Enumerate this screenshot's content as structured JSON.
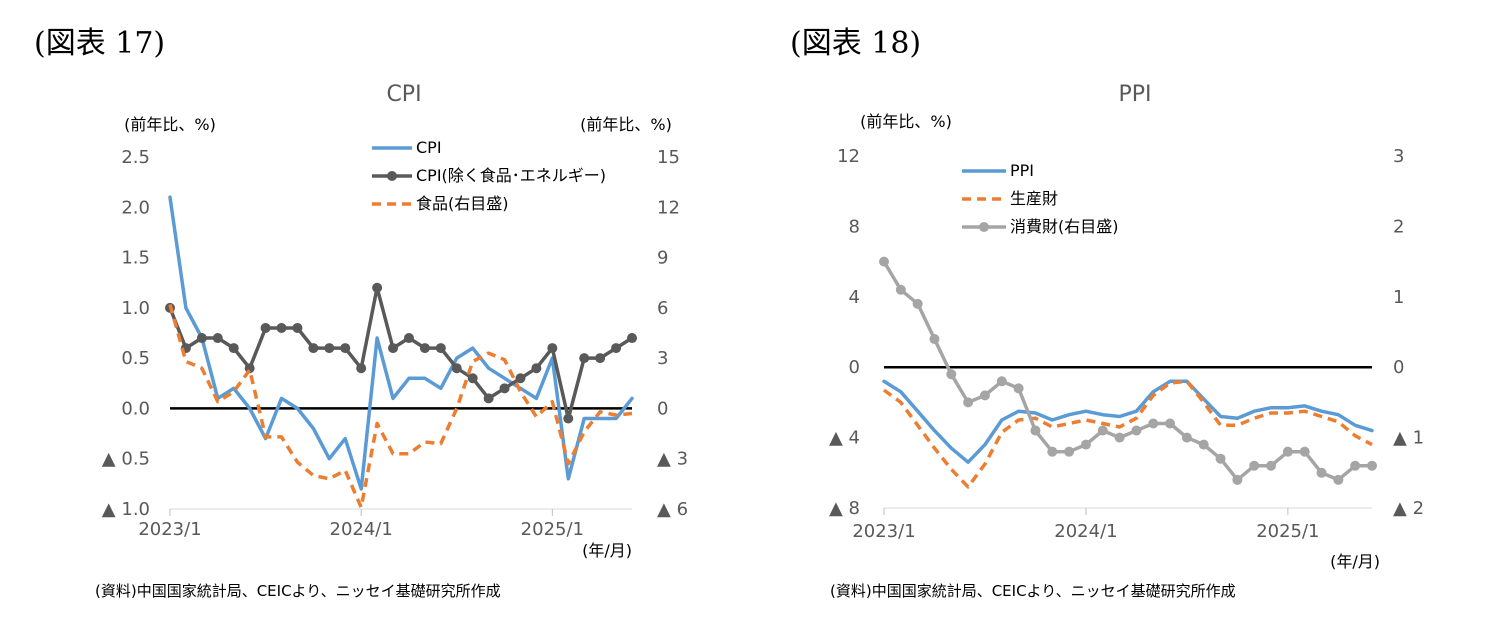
{
  "figures": [
    {
      "label": "(図表 17)",
      "source": "(資料)中国国家統計局、CEICより、ニッセイ基礎研究所作成"
    },
    {
      "label": "(図表 18)",
      "source": "(資料)中国国家統計局、CEICより、ニッセイ基礎研究所作成"
    }
  ],
  "chart_data": [
    {
      "type": "line",
      "title": "CPI",
      "left_unit": "(前年比、%)",
      "right_unit": "(前年比、%)",
      "x_unit": "(年/月)",
      "x": [
        "2023/1",
        "2023/2",
        "2023/3",
        "2023/4",
        "2023/5",
        "2023/6",
        "2023/7",
        "2023/8",
        "2023/9",
        "2023/10",
        "2023/11",
        "2023/12",
        "2024/1",
        "2024/2",
        "2024/3",
        "2024/4",
        "2024/5",
        "2024/6",
        "2024/7",
        "2024/8",
        "2024/9",
        "2024/10",
        "2024/11",
        "2024/12",
        "2025/1",
        "2025/2",
        "2025/3",
        "2025/4",
        "2025/5",
        "2025/6"
      ],
      "x_tick_labels": [
        "2023/1",
        "2024/1",
        "2025/1"
      ],
      "left_ylim": [
        -1.0,
        2.5
      ],
      "left_yticks": [
        "2.5",
        "2.0",
        "1.5",
        "1.0",
        "0.5",
        "0.0",
        "▲ 0.5",
        "▲ 1.0"
      ],
      "right_ylim": [
        -6,
        15
      ],
      "right_yticks": [
        "15",
        "12",
        "9",
        "6",
        "3",
        "0",
        "▲ 3",
        "▲ 6"
      ],
      "zero_line": true,
      "legend_position": "top-right",
      "series": [
        {
          "name": "CPI",
          "axis": "left",
          "color": "#5B9BD5",
          "style": "solid",
          "values": [
            2.1,
            1.0,
            0.7,
            0.1,
            0.2,
            0.0,
            -0.3,
            0.1,
            0.0,
            -0.2,
            -0.5,
            -0.3,
            -0.8,
            0.7,
            0.1,
            0.3,
            0.3,
            0.2,
            0.5,
            0.6,
            0.4,
            0.3,
            0.2,
            0.1,
            0.5,
            -0.7,
            -0.1,
            -0.1,
            -0.1,
            0.1
          ]
        },
        {
          "name": "CPI(除く食品･エネルギー)",
          "axis": "left",
          "color": "#595959",
          "style": "solid-marker",
          "values": [
            1.0,
            0.6,
            0.7,
            0.7,
            0.6,
            0.4,
            0.8,
            0.8,
            0.8,
            0.6,
            0.6,
            0.6,
            0.4,
            1.2,
            0.6,
            0.7,
            0.6,
            0.6,
            0.4,
            0.3,
            0.1,
            0.2,
            0.3,
            0.4,
            0.6,
            -0.1,
            0.5,
            0.5,
            0.6,
            0.7
          ]
        },
        {
          "name": "食品(右目盛)",
          "axis": "right",
          "color": "#ED7D31",
          "style": "dashed",
          "values": [
            6.2,
            2.8,
            2.4,
            0.4,
            1.0,
            2.3,
            -1.7,
            -1.7,
            -3.2,
            -4.0,
            -4.2,
            -3.7,
            -5.9,
            -0.9,
            -2.7,
            -2.7,
            -2.0,
            -2.1,
            0.0,
            2.8,
            3.3,
            2.9,
            1.0,
            -0.5,
            0.4,
            -3.3,
            -1.4,
            -0.2,
            -0.4,
            -0.3
          ]
        }
      ]
    },
    {
      "type": "line",
      "title": "PPI",
      "left_unit": "(前年比、%)",
      "x_unit": "(年/月)",
      "x": [
        "2023/1",
        "2023/2",
        "2023/3",
        "2023/4",
        "2023/5",
        "2023/6",
        "2023/7",
        "2023/8",
        "2023/9",
        "2023/10",
        "2023/11",
        "2023/12",
        "2024/1",
        "2024/2",
        "2024/3",
        "2024/4",
        "2024/5",
        "2024/6",
        "2024/7",
        "2024/8",
        "2024/9",
        "2024/10",
        "2024/11",
        "2024/12",
        "2025/1",
        "2025/2",
        "2025/3",
        "2025/4",
        "2025/5",
        "2025/6"
      ],
      "x_tick_labels": [
        "2023/1",
        "2024/1",
        "2025/1"
      ],
      "left_ylim": [
        -8,
        12
      ],
      "left_yticks": [
        "12",
        "8",
        "4",
        "0",
        "▲ 4",
        "▲ 8"
      ],
      "right_ylim": [
        -2,
        3
      ],
      "right_yticks": [
        "3",
        "2",
        "1",
        "0",
        "▲ 1",
        "▲ 2"
      ],
      "zero_line": true,
      "legend_position": "top-left",
      "series": [
        {
          "name": "PPI",
          "axis": "left",
          "color": "#5B9BD5",
          "style": "solid",
          "values": [
            -0.8,
            -1.4,
            -2.5,
            -3.6,
            -4.6,
            -5.4,
            -4.4,
            -3.0,
            -2.5,
            -2.6,
            -3.0,
            -2.7,
            -2.5,
            -2.7,
            -2.8,
            -2.5,
            -1.4,
            -0.8,
            -0.8,
            -1.8,
            -2.8,
            -2.9,
            -2.5,
            -2.3,
            -2.3,
            -2.2,
            -2.5,
            -2.7,
            -3.3,
            -3.6
          ]
        },
        {
          "name": "生産財",
          "axis": "left",
          "color": "#ED7D31",
          "style": "dashed",
          "values": [
            -1.3,
            -2.0,
            -3.3,
            -4.6,
            -5.8,
            -6.8,
            -5.5,
            -3.7,
            -3.0,
            -2.9,
            -3.4,
            -3.2,
            -3.0,
            -3.2,
            -3.4,
            -2.9,
            -1.6,
            -0.9,
            -0.8,
            -2.0,
            -3.3,
            -3.3,
            -2.9,
            -2.6,
            -2.6,
            -2.5,
            -2.8,
            -3.1,
            -3.9,
            -4.4
          ]
        },
        {
          "name": "消費財(右目盛)",
          "axis": "right",
          "color": "#A5A5A5",
          "style": "solid-marker",
          "values": [
            1.5,
            1.1,
            0.9,
            0.4,
            -0.1,
            -0.5,
            -0.4,
            -0.2,
            -0.3,
            -0.9,
            -1.2,
            -1.2,
            -1.1,
            -0.9,
            -1.0,
            -0.9,
            -0.8,
            -0.8,
            -1.0,
            -1.1,
            -1.3,
            -1.6,
            -1.4,
            -1.4,
            -1.2,
            -1.2,
            -1.5,
            -1.6,
            -1.4,
            -1.4
          ]
        }
      ]
    }
  ]
}
